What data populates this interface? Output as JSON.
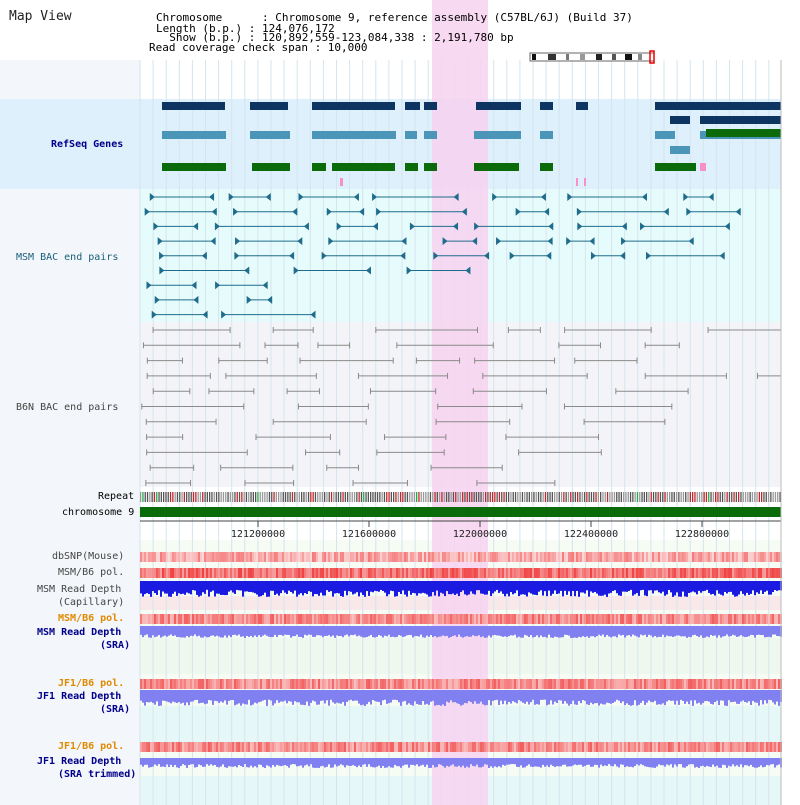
{
  "header": {
    "title": "Map View",
    "chromosome_line": "Chromosome      : Chromosome 9, reference assembly (C57BL/6J) (Build 37)",
    "length_line": "Length (b.p.) : 124,076,172",
    "show_line": "  Show (b.p.) : 120,892,559-123,084,338 : 2,191,780 bp",
    "coverage_line": "Read coverage check span : 10,000"
  },
  "tracks": {
    "refseq": "RefSeq Genes",
    "msm_bac": "MSM BAC end pairs",
    "b6n_bac": "B6N BAC end pairs",
    "repeat": "Repeat",
    "chromosome": "chromosome 9",
    "dbsnp": "dbSNP(Mouse)",
    "msm_pol_1": "MSM/B6 pol.",
    "msm_depth_cap_1": "MSM Read Depth",
    "msm_depth_cap_2": "(Capillary)",
    "msm_pol_2": "MSM/B6 pol.",
    "msm_depth_sra_1": "MSM Read Depth",
    "msm_depth_sra_2": "(SRA)",
    "jf1_pol_1": "JF1/B6 pol.",
    "jf1_depth_sra_1": "JF1 Read Depth",
    "jf1_depth_sra_2": "(SRA)",
    "jf1_pol_2": "JF1/B6 pol.",
    "jf1_depth_trim_1": "JF1 Read Depth",
    "jf1_depth_trim_2": "(SRA trimmed)"
  },
  "ruler": {
    "ticks": [
      "121200000",
      "121600000",
      "122000000",
      "122400000",
      "122800000"
    ]
  },
  "colors": {
    "refseq_bg": "#ddf0fb",
    "msm_bg": "#e6fbfb",
    "b6n_bg": "#f4f4f8",
    "highlight": "#f7d2f0",
    "gene_navy": "#0e3461",
    "gene_blue": "#4a95b8",
    "gene_green": "#0b6b0b",
    "msm_bar": "#1f6c8c",
    "b6n_bar": "#8a8a8a",
    "chromosome": "#0b6b0b",
    "depth_cap": "#1a1ae0",
    "depth_sra": "#8080f0"
  }
}
